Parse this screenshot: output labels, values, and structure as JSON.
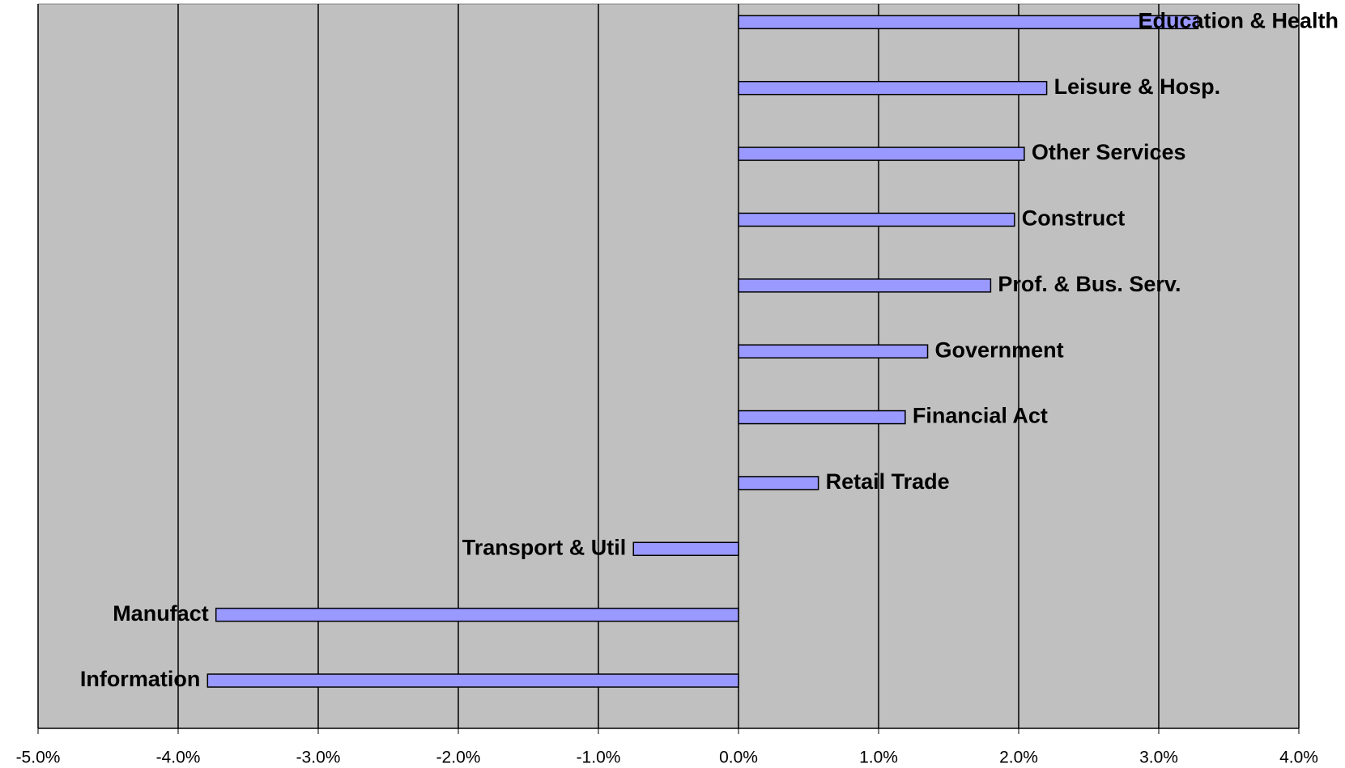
{
  "chart_data": {
    "type": "bar",
    "orientation": "horizontal",
    "categories": [
      "Education & Health",
      "Leisure & Hosp.",
      "Other Services",
      "Construct",
      "Prof. & Bus. Serv.",
      "Government",
      "Financial Act",
      "Retail Trade",
      "Transport & Util",
      "Manufact",
      "Information"
    ],
    "values": [
      3.28,
      2.2,
      2.04,
      1.97,
      1.8,
      1.35,
      1.19,
      0.57,
      -0.75,
      -3.73,
      -3.79
    ],
    "color": "#9999ff",
    "xlim": [
      -5,
      4
    ],
    "xticks": [
      {
        "value": -5,
        "label": "-5.0%"
      },
      {
        "value": -4,
        "label": "-4.0%"
      },
      {
        "value": -3,
        "label": "-3.0%"
      },
      {
        "value": -2,
        "label": "-2.0%"
      },
      {
        "value": -1,
        "label": "-1.0%"
      },
      {
        "value": 0,
        "label": "0.0%"
      },
      {
        "value": 1,
        "label": "1.0%"
      },
      {
        "value": 2,
        "label": "2.0%"
      },
      {
        "value": 3,
        "label": "3.0%"
      },
      {
        "value": 4,
        "label": "4.0%"
      }
    ],
    "grid": true
  }
}
